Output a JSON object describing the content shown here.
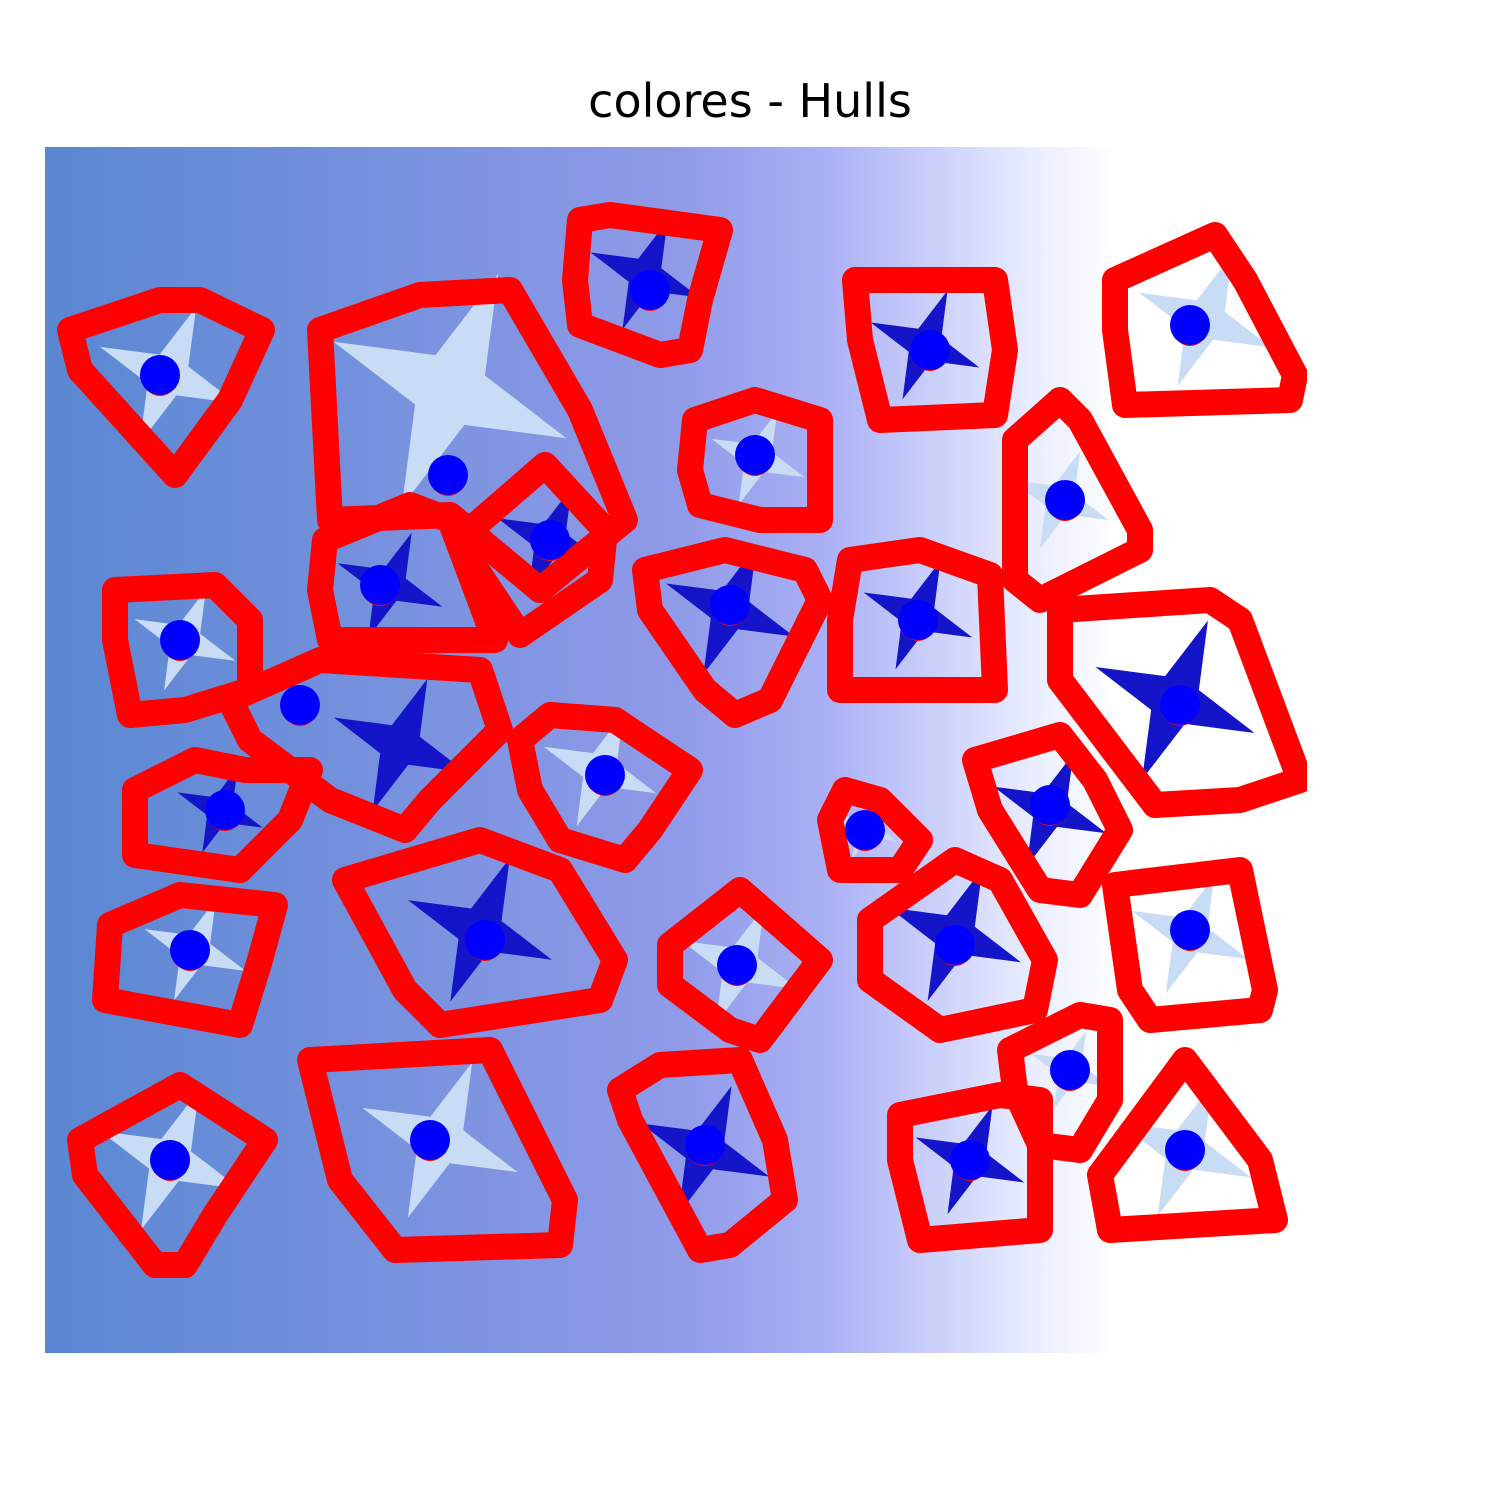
{
  "figure": {
    "title": "colores - Hulls"
  },
  "colors": {
    "hull_outline": "#ff0000",
    "centroid_marker": "#0000ff",
    "shape_fill_dark": "#1414c8",
    "shape_fill_light": "#c8dcf5",
    "background_left": "#5a87d2",
    "background_mid": "#a0a8f0",
    "background_right": "#ffffff"
  },
  "image": {
    "description_icon": "photo-icon"
  }
}
